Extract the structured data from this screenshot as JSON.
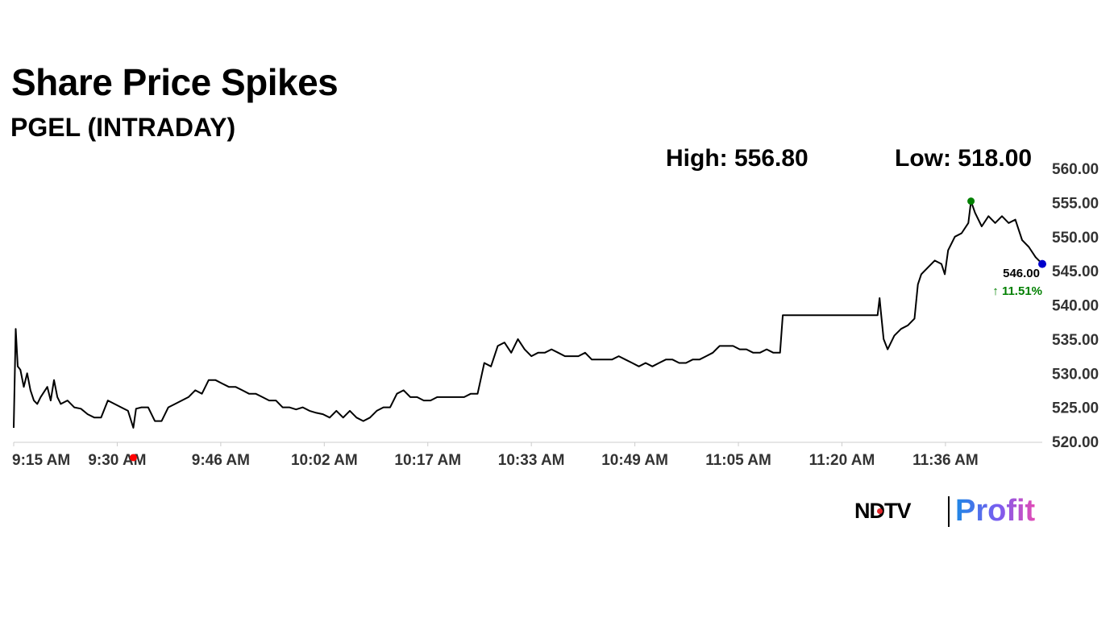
{
  "header": {
    "title": "Share Price Spikes",
    "subtitle": "PGEL (INTRADAY)"
  },
  "stats": {
    "high_label": "High: 556.80",
    "low_label": "Low: 518.00"
  },
  "last": {
    "price": "546.00",
    "change": "↑ 11.51%",
    "change_color": "#008000"
  },
  "branding": {
    "ndtv": "NDTV",
    "profit": "Profit"
  },
  "colors": {
    "line": "#000000",
    "high_marker": "#008000",
    "low_marker": "#ff0000",
    "last_marker": "#0000cc",
    "axis": "#cccccc"
  },
  "chart_data": {
    "type": "line",
    "title": "Share Price Spikes",
    "subtitle": "PGEL (INTRADAY)",
    "x_unit": "minutes after 9:15 AM",
    "xlim": [
      0,
      153
    ],
    "ylim": [
      520,
      560
    ],
    "y_ticks": [
      "560.00",
      "555.00",
      "550.00",
      "545.00",
      "540.00",
      "535.00",
      "530.00",
      "525.00",
      "520.00"
    ],
    "x_ticks": [
      {
        "t": 0,
        "label": "9:15 AM"
      },
      {
        "t": 15.4,
        "label": "9:30 AM"
      },
      {
        "t": 30.8,
        "label": "9:46 AM"
      },
      {
        "t": 46.2,
        "label": "10:02 AM"
      },
      {
        "t": 61.6,
        "label": "10:17 AM"
      },
      {
        "t": 77,
        "label": "10:33 AM"
      },
      {
        "t": 92.4,
        "label": "10:49 AM"
      },
      {
        "t": 107.8,
        "label": "11:05 AM"
      },
      {
        "t": 123.2,
        "label": "11:20 AM"
      },
      {
        "t": 138.6,
        "label": "11:36 AM"
      }
    ],
    "grid": false,
    "series": [
      {
        "values": [
          [
            0,
            522
          ],
          [
            0.3,
            536.5
          ],
          [
            0.6,
            531
          ],
          [
            1,
            530.5
          ],
          [
            1.5,
            528
          ],
          [
            2,
            530
          ],
          [
            2.5,
            527.5
          ],
          [
            3,
            526
          ],
          [
            3.5,
            525.5
          ],
          [
            4,
            526.5
          ],
          [
            5,
            528
          ],
          [
            5.5,
            526
          ],
          [
            6,
            529
          ],
          [
            6.5,
            526.5
          ],
          [
            7,
            525.5
          ],
          [
            8,
            526
          ],
          [
            9,
            525
          ],
          [
            10,
            524.8
          ],
          [
            11,
            524
          ],
          [
            12,
            523.5
          ],
          [
            13,
            523.5
          ],
          [
            14,
            526
          ],
          [
            15,
            525.5
          ],
          [
            16,
            525
          ],
          [
            17,
            524.5
          ],
          [
            17.8,
            522
          ],
          [
            18.2,
            524.8
          ],
          [
            19,
            525
          ],
          [
            20,
            525
          ],
          [
            21,
            523
          ],
          [
            22,
            523
          ],
          [
            23,
            525
          ],
          [
            24,
            525.5
          ],
          [
            25,
            526
          ],
          [
            26,
            526.5
          ],
          [
            27,
            527.5
          ],
          [
            28,
            527
          ],
          [
            29,
            529
          ],
          [
            30,
            529
          ],
          [
            31,
            528.5
          ],
          [
            32,
            528
          ],
          [
            33,
            528
          ],
          [
            34,
            527.5
          ],
          [
            35,
            527
          ],
          [
            36,
            527
          ],
          [
            37,
            526.5
          ],
          [
            38,
            526
          ],
          [
            39,
            526
          ],
          [
            40,
            525
          ],
          [
            41,
            525
          ],
          [
            42,
            524.7
          ],
          [
            43,
            525
          ],
          [
            44,
            524.5
          ],
          [
            45,
            524.2
          ],
          [
            46,
            524
          ],
          [
            47,
            523.5
          ],
          [
            48,
            524.5
          ],
          [
            49,
            523.5
          ],
          [
            50,
            524.5
          ],
          [
            51,
            523.5
          ],
          [
            52,
            523
          ],
          [
            53,
            523.5
          ],
          [
            54,
            524.5
          ],
          [
            55,
            525
          ],
          [
            56,
            525
          ],
          [
            57,
            527
          ],
          [
            58,
            527.5
          ],
          [
            59,
            526.5
          ],
          [
            60,
            526.5
          ],
          [
            61,
            526
          ],
          [
            62,
            526
          ],
          [
            63,
            526.5
          ],
          [
            64,
            526.5
          ],
          [
            65,
            526.5
          ],
          [
            66,
            526.5
          ],
          [
            67,
            526.5
          ],
          [
            68,
            527
          ],
          [
            69,
            527
          ],
          [
            70,
            531.5
          ],
          [
            71,
            531
          ],
          [
            72,
            534
          ],
          [
            73,
            534.5
          ],
          [
            74,
            533
          ],
          [
            75,
            535
          ],
          [
            76,
            533.5
          ],
          [
            77,
            532.5
          ],
          [
            78,
            533
          ],
          [
            79,
            533
          ],
          [
            80,
            533.5
          ],
          [
            81,
            533
          ],
          [
            82,
            532.5
          ],
          [
            83,
            532.5
          ],
          [
            84,
            532.5
          ],
          [
            85,
            533
          ],
          [
            86,
            532
          ],
          [
            87,
            532
          ],
          [
            88,
            532
          ],
          [
            89,
            532
          ],
          [
            90,
            532.5
          ],
          [
            91,
            532
          ],
          [
            92,
            531.5
          ],
          [
            93,
            531
          ],
          [
            94,
            531.5
          ],
          [
            95,
            531
          ],
          [
            96,
            531.5
          ],
          [
            97,
            532
          ],
          [
            98,
            532
          ],
          [
            99,
            531.5
          ],
          [
            100,
            531.5
          ],
          [
            101,
            532
          ],
          [
            102,
            532
          ],
          [
            103,
            532.5
          ],
          [
            104,
            533
          ],
          [
            105,
            534
          ],
          [
            106,
            534
          ],
          [
            107,
            534
          ],
          [
            108,
            533.5
          ],
          [
            109,
            533.5
          ],
          [
            110,
            533
          ],
          [
            111,
            533
          ],
          [
            112,
            533.5
          ],
          [
            113,
            533
          ],
          [
            114,
            533
          ],
          [
            114.4,
            538.5
          ],
          [
            117,
            538.5
          ],
          [
            120,
            538.5
          ],
          [
            123,
            538.5
          ],
          [
            126,
            538.5
          ],
          [
            128.5,
            538.5
          ],
          [
            128.8,
            541
          ],
          [
            129,
            539
          ],
          [
            129.4,
            535
          ],
          [
            130,
            533.5
          ],
          [
            131,
            535.5
          ],
          [
            132,
            536.5
          ],
          [
            133,
            537
          ],
          [
            134,
            538
          ],
          [
            134.5,
            543
          ],
          [
            135,
            544.5
          ],
          [
            136,
            545.5
          ],
          [
            137,
            546.5
          ],
          [
            138,
            546
          ],
          [
            138.5,
            544.5
          ],
          [
            139,
            548
          ],
          [
            140,
            550
          ],
          [
            141,
            550.5
          ],
          [
            142,
            552
          ],
          [
            142.4,
            555.2
          ],
          [
            143,
            553.5
          ],
          [
            144,
            551.5
          ],
          [
            145,
            553
          ],
          [
            146,
            552
          ],
          [
            147,
            553
          ],
          [
            148,
            552
          ],
          [
            149,
            552.5
          ],
          [
            150,
            549.5
          ],
          [
            151,
            548.5
          ],
          [
            152,
            547
          ],
          [
            153,
            546
          ]
        ]
      }
    ],
    "markers": {
      "high": {
        "t": 142.4,
        "value": 556.8
      },
      "low": {
        "t": 17.8,
        "value": 518.0
      },
      "last": {
        "t": 153,
        "value": 546.0,
        "label": "546.00"
      }
    }
  }
}
